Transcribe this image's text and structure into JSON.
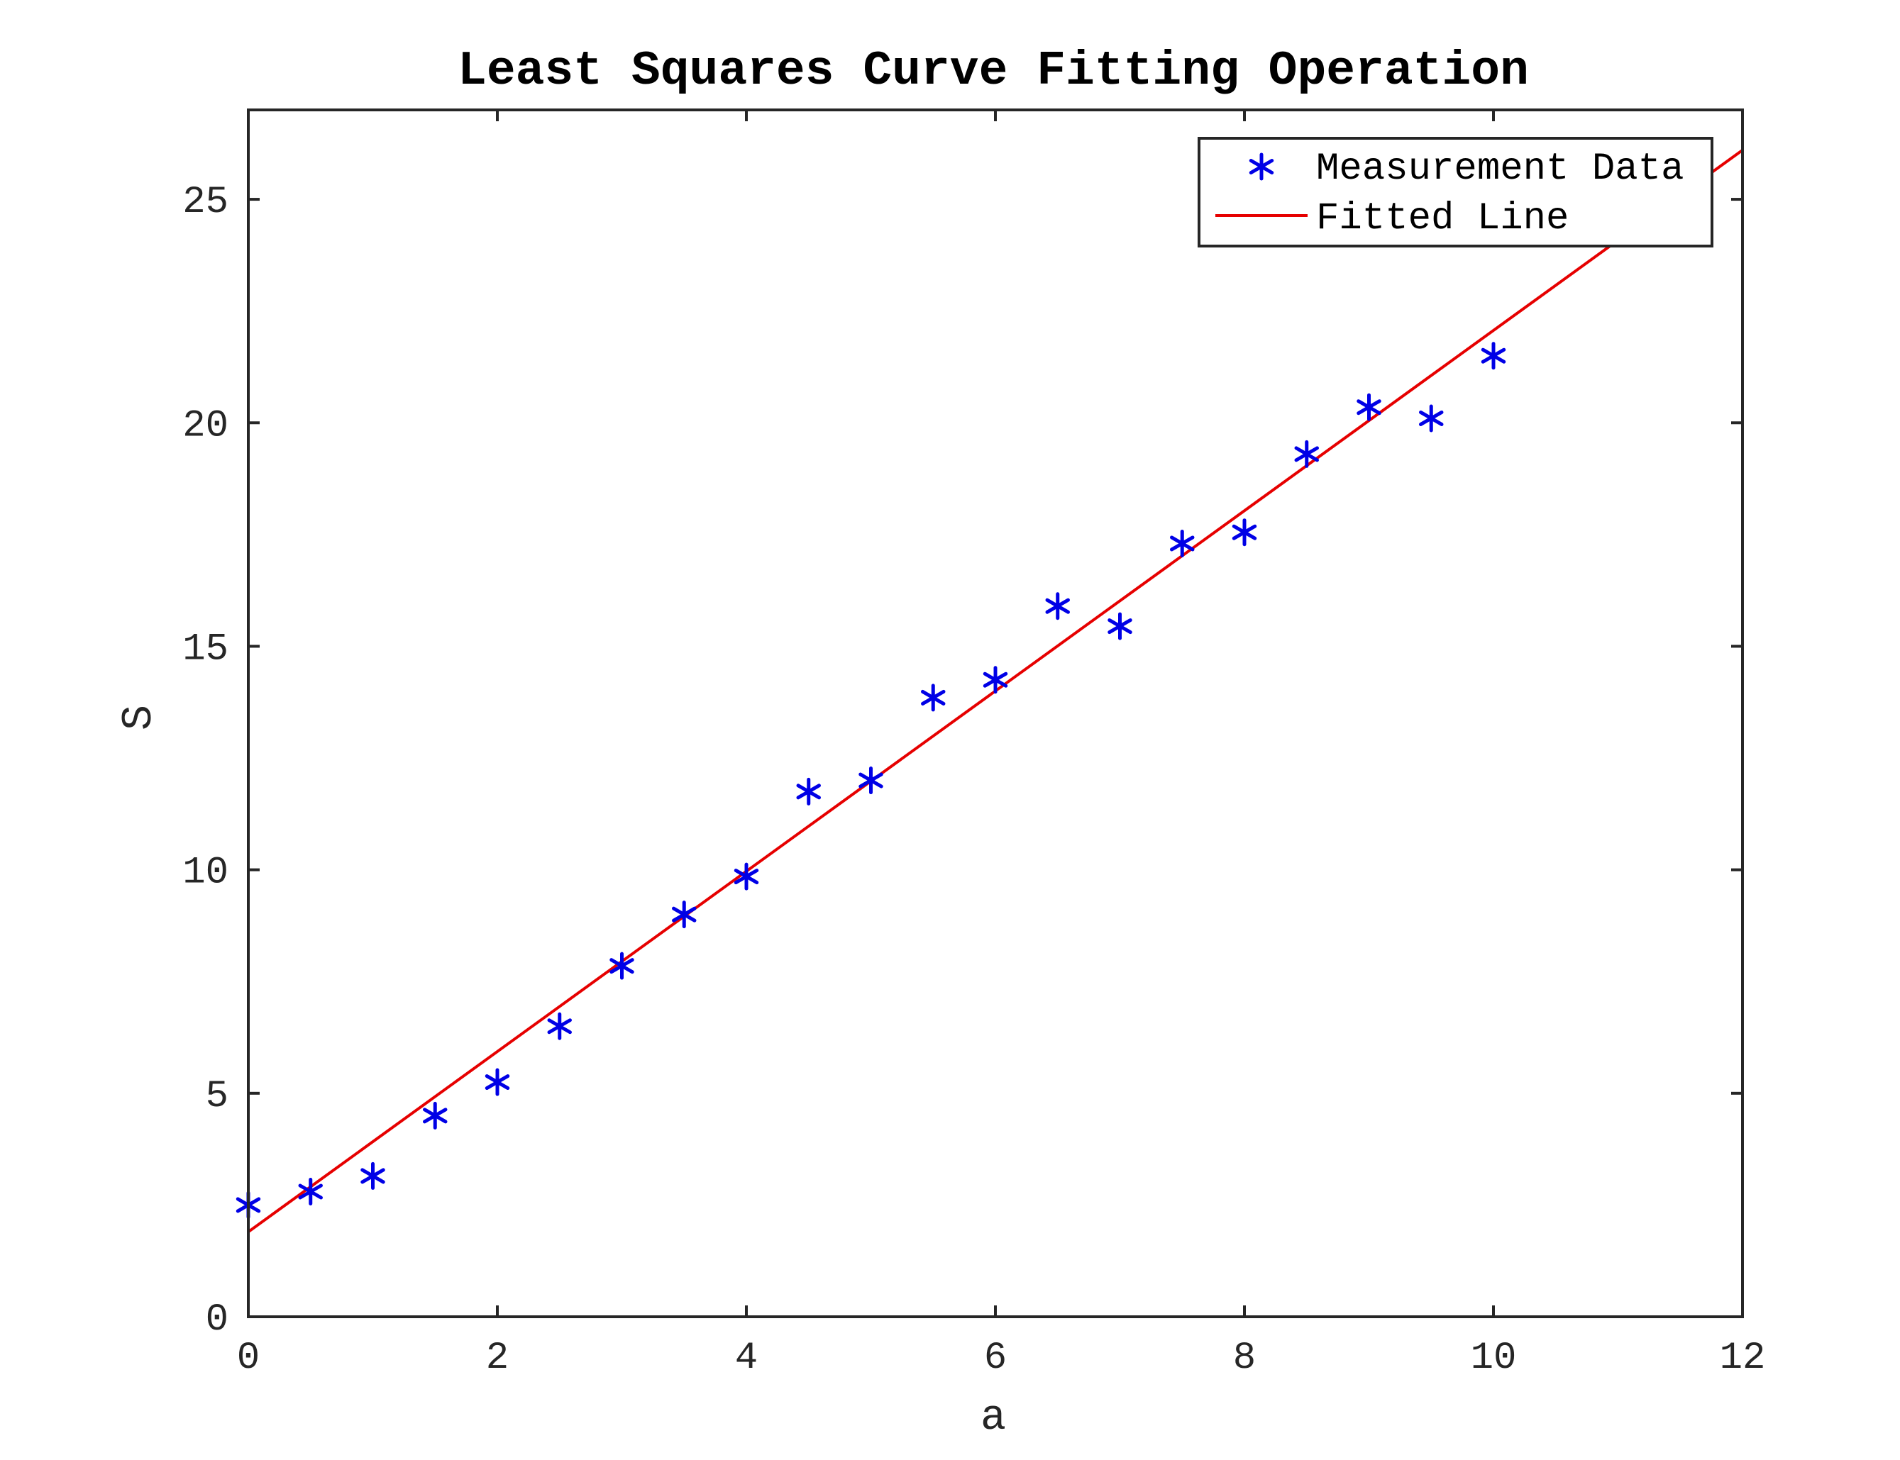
{
  "chart_data": {
    "type": "scatter",
    "title": "Least Squares Curve Fitting Operation",
    "xlabel": "a",
    "ylabel": "S",
    "xlim": [
      0,
      12
    ],
    "ylim": [
      0,
      27
    ],
    "xticks": [
      0,
      2,
      4,
      6,
      8,
      10,
      12
    ],
    "yticks": [
      0,
      5,
      10,
      15,
      20,
      25
    ],
    "grid": false,
    "legend_position": "top-right",
    "series": [
      {
        "name": "Measurement Data",
        "kind": "scatter",
        "marker": "asterisk",
        "color": "#0000e6",
        "x": [
          0,
          0.5,
          1,
          1.5,
          2,
          2.5,
          3,
          3.5,
          4,
          4.5,
          5,
          5.5,
          6,
          6.5,
          7,
          7.5,
          8,
          8.5,
          9,
          9.5,
          10
        ],
        "y": [
          2.5,
          2.8,
          3.15,
          4.5,
          5.25,
          6.5,
          7.85,
          9.0,
          9.85,
          11.75,
          12.0,
          13.85,
          14.25,
          15.9,
          15.45,
          17.3,
          17.55,
          19.3,
          20.35,
          20.1,
          21.5
        ]
      },
      {
        "name": "Fitted Line",
        "kind": "line",
        "color": "#e60000",
        "x": [
          0,
          12
        ],
        "y": [
          1.9,
          26.1
        ]
      }
    ]
  }
}
